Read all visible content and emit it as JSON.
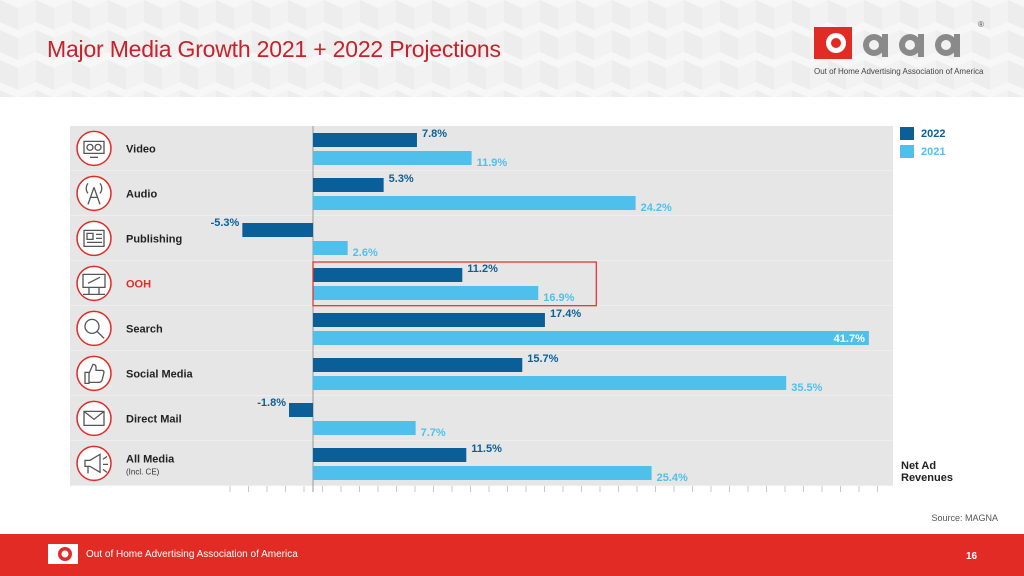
{
  "slide": {
    "title": "Major Media Growth 2021 + 2022 Projections",
    "source": "Source: MAGNA",
    "page_number": "16"
  },
  "logo": {
    "subtitle": "Out of Home Advertising Association of America",
    "registered": "®"
  },
  "footer": {
    "text": "Out of Home Advertising Association of America"
  },
  "colors": {
    "brand_red": "#e32b26",
    "series_2022": "#0b5f99",
    "series_2021": "#4fc0ec",
    "row_bg": "#e6e6e6"
  },
  "chart_data": {
    "type": "bar",
    "orientation": "horizontal",
    "title": "",
    "xlabel": "Net Ad Revenues",
    "unit": "%",
    "xlim": [
      -10,
      45
    ],
    "categories": [
      {
        "label": "Video",
        "sub": "",
        "icon": "video-icon",
        "highlight": false
      },
      {
        "label": "Audio",
        "sub": "",
        "icon": "radio-tower-icon",
        "highlight": false
      },
      {
        "label": "Publishing",
        "sub": "",
        "icon": "newspaper-icon",
        "highlight": false
      },
      {
        "label": "OOH",
        "sub": "",
        "icon": "billboard-icon",
        "highlight": true
      },
      {
        "label": "Search",
        "sub": "",
        "icon": "search-icon",
        "highlight": false
      },
      {
        "label": "Social Media",
        "sub": "",
        "icon": "thumbs-up-icon",
        "highlight": false
      },
      {
        "label": "Direct Mail",
        "sub": "",
        "icon": "mail-icon",
        "highlight": false
      },
      {
        "label": "All Media",
        "sub": "(Incl. CE)",
        "icon": "megaphone-icon",
        "highlight": false
      }
    ],
    "series": [
      {
        "name": "2022",
        "color": "#0b5f99",
        "values": [
          7.8,
          5.3,
          -5.3,
          11.2,
          17.4,
          15.7,
          -1.8,
          11.5
        ],
        "labels": [
          "7.8%",
          "5.3%",
          "-5.3%",
          "11.2%",
          "17.4%",
          "15.7%",
          "-1.8%",
          "11.5%"
        ]
      },
      {
        "name": "2021",
        "color": "#4fc0ec",
        "values": [
          11.9,
          24.2,
          2.6,
          16.9,
          41.7,
          35.5,
          7.7,
          25.4
        ],
        "labels": [
          "11.9%",
          "24.2%",
          "2.6%",
          "16.9%",
          "41.7%",
          "35.5%",
          "7.7%",
          "25.4%"
        ]
      }
    ],
    "legend": {
      "position": "top-right"
    },
    "axis_note_line1": "Net Ad",
    "axis_note_line2": "Revenues"
  }
}
